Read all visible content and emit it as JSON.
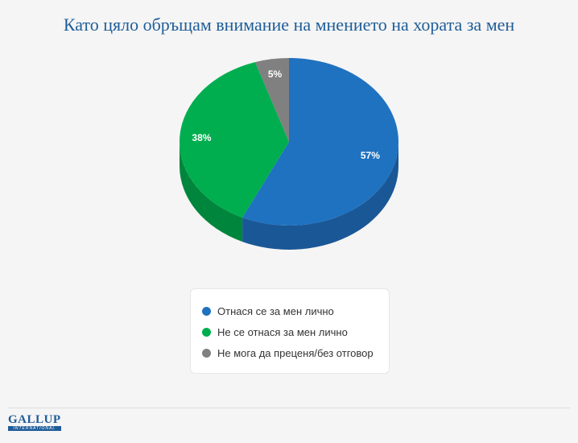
{
  "title": "Като цяло обръщам внимание на мнението на хората за мен",
  "chart_data": {
    "type": "pie",
    "title": "Като цяло обръщам внимание на мнението на хората за мен",
    "categories": [
      "Отнася се за мен лично",
      "Не се отнася за мен лично",
      "Не мога да преценя/без отговор"
    ],
    "values": [
      57,
      38,
      5
    ],
    "labels": [
      "57%",
      "38%",
      "5%"
    ],
    "colors": [
      "#1f72c0",
      "#00ae4f",
      "#808080"
    ],
    "side_colors": [
      "#1a5796",
      "#00863c",
      "#5e5e5e"
    ],
    "style": "3d",
    "legend_position": "bottom"
  },
  "legend": [
    {
      "label": "Отнася се за мен лично",
      "color": "#1f72c0"
    },
    {
      "label": "Не се отнася за мен лично",
      "color": "#00ae4f"
    },
    {
      "label": "Не мога да преценя/без отговор",
      "color": "#808080"
    }
  ],
  "logo": {
    "main": "GALLUP",
    "sub": "INTERNATIONAL"
  }
}
